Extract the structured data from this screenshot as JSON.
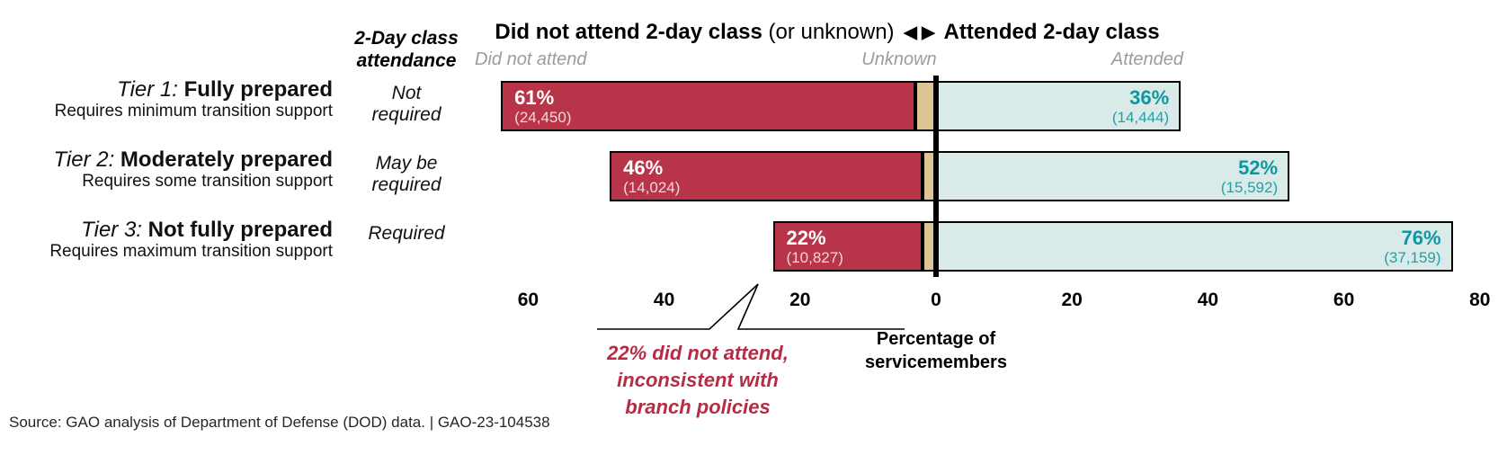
{
  "title": {
    "left_bold": "Did not attend 2-day class",
    "left_normal": " (or unknown) ",
    "arrows": "◀ ▶",
    "right_bold": " Attended 2-day class"
  },
  "column_headers": {
    "attendance_line1": "2-Day class",
    "attendance_line2": "attendance",
    "did_not_attend": "Did not attend",
    "unknown": "Unknown",
    "attended": "Attended"
  },
  "axis": {
    "label_line1": "Percentage of",
    "label_line2": "servicemembers",
    "ticks": [
      {
        "label": "60",
        "value": -60
      },
      {
        "label": "40",
        "value": -40
      },
      {
        "label": "20",
        "value": -20
      },
      {
        "label": "0",
        "value": 0
      },
      {
        "label": "20",
        "value": 20
      },
      {
        "label": "40",
        "value": 40
      },
      {
        "label": "60",
        "value": 60
      },
      {
        "label": "80",
        "value": 80
      }
    ]
  },
  "annotation": {
    "line1": "22% did not attend,",
    "line2": "inconsistent with",
    "line3": "branch policies"
  },
  "source": "Source: GAO analysis of Department of Defense (DOD) data.  |  GAO-23-104538",
  "colors": {
    "did_not_attend_bar": "#B73449",
    "unknown_bar": "#DCC493",
    "attended_bar": "#D9EAE8",
    "attended_text": "#0D98A1",
    "annotation_text": "#B52C44",
    "gray_header_text": "#9C9C9C",
    "zero_line": "#000000"
  },
  "chart_data": {
    "type": "bar",
    "orientation": "diverging-horizontal",
    "title": "Did not attend 2-day class (or unknown) ◀ ▶ Attended 2-day class",
    "xlabel": "Percentage of servicemembers",
    "xlim": [
      -66,
      80
    ],
    "tick_values": [
      -60,
      -40,
      -20,
      0,
      20,
      40,
      60,
      80
    ],
    "legend": [
      "Did not attend",
      "Unknown",
      "Attended"
    ],
    "rows": [
      {
        "tier": "Tier 1:",
        "name": "Fully prepared",
        "support": "Requires minimum transition support",
        "attendance_lines": [
          "Not",
          "required"
        ],
        "did_not_attend": {
          "pct": 61,
          "label": "61%",
          "count": "(24,450)"
        },
        "unknown_pct": 3,
        "attended": {
          "pct": 36,
          "label": "36%",
          "count": "(14,444)"
        }
      },
      {
        "tier": "Tier 2:",
        "name": "Moderately prepared",
        "support": "Requires some transition support",
        "attendance_lines": [
          "May be",
          "required"
        ],
        "did_not_attend": {
          "pct": 46,
          "label": "46%",
          "count": "(14,024)"
        },
        "unknown_pct": 2,
        "attended": {
          "pct": 52,
          "label": "52%",
          "count": "(15,592)"
        }
      },
      {
        "tier": "Tier 3:",
        "name": "Not fully prepared",
        "support": "Requires maximum transition support",
        "attendance_lines": [
          "Required"
        ],
        "did_not_attend": {
          "pct": 22,
          "label": "22%",
          "count": "(10,827)"
        },
        "unknown_pct": 2,
        "attended": {
          "pct": 76,
          "label": "76%",
          "count": "(37,159)"
        }
      }
    ]
  }
}
